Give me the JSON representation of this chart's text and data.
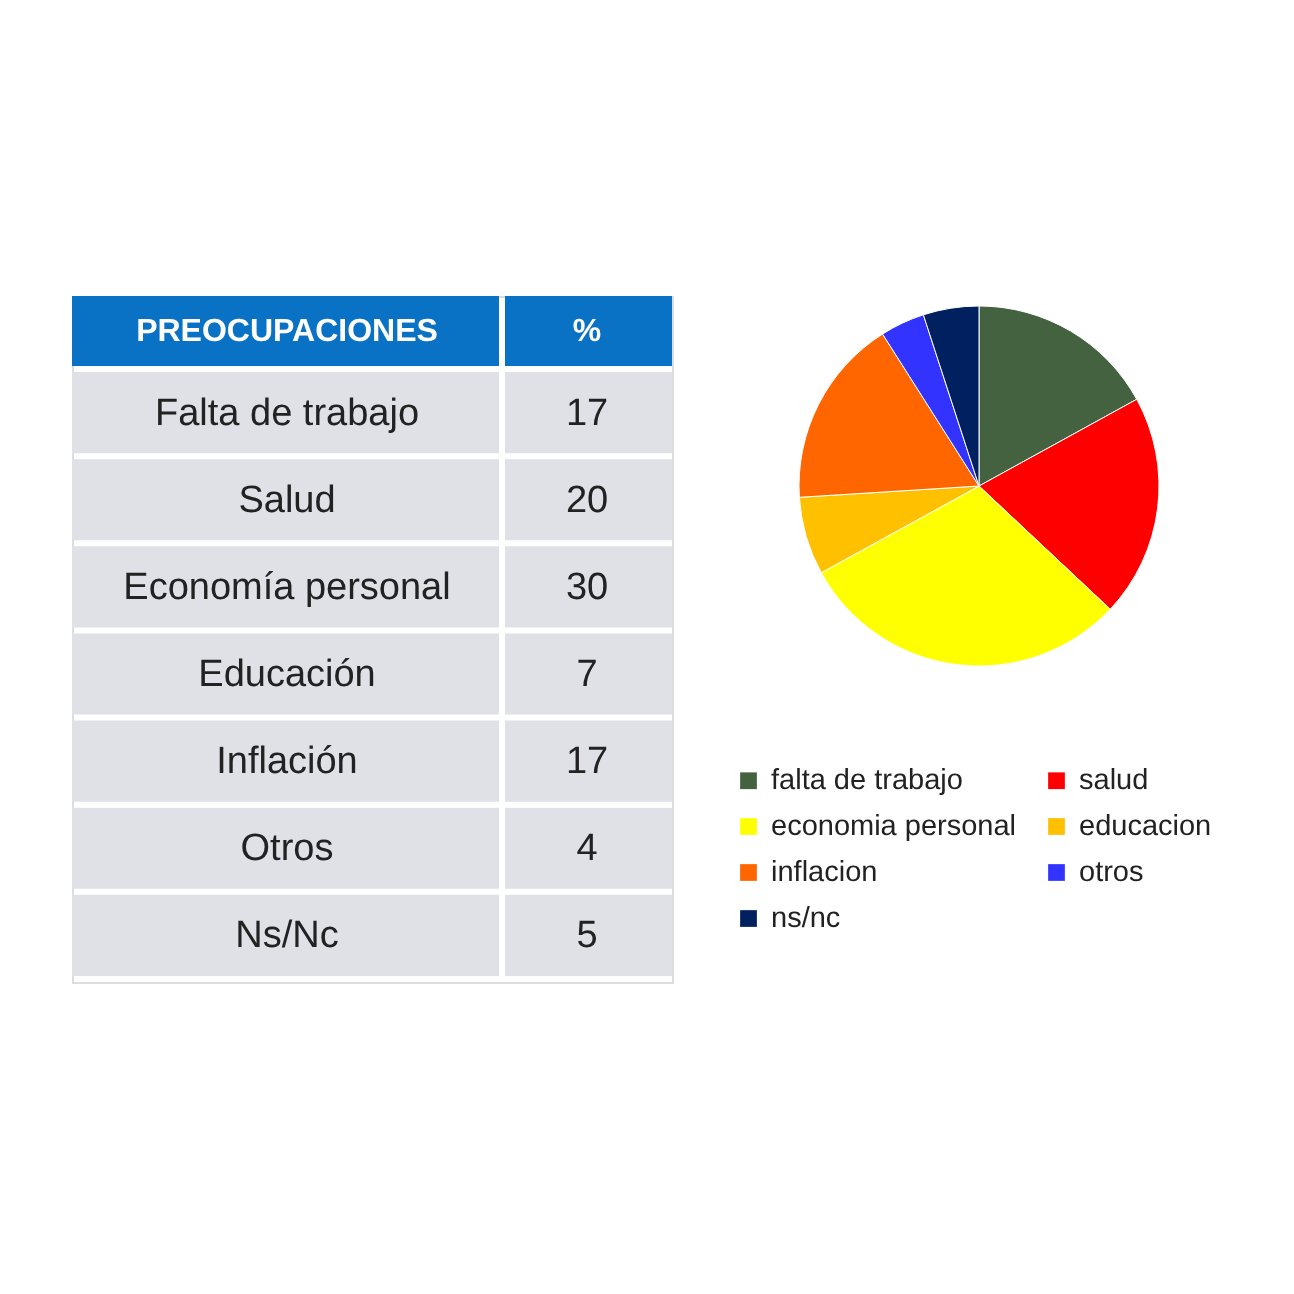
{
  "chart_data": [
    {
      "type": "other",
      "xlabel": "PREOCUPACIONES",
      "ylabel": "%",
      "categories": [
        "Falta de trabajo",
        "Salud",
        "Economía personal",
        "Educación",
        "Inflación",
        "Otros",
        "Ns/Nc"
      ],
      "values": [
        17,
        20,
        30,
        7,
        17,
        4,
        5
      ],
      "data_labels": true
    },
    {
      "type": "pie",
      "categories": [
        "falta de trabajo",
        "salud",
        "economia personal",
        "educacion",
        "inflacion",
        "otros",
        "ns/nc"
      ],
      "values": [
        17,
        20,
        30,
        7,
        17,
        4,
        5
      ],
      "colors": [
        "#44623f",
        "#ff0000",
        "#ffff00",
        "#ffc000",
        "#ff6600",
        "#3333ff",
        "#002060"
      ],
      "legend": "bottom"
    }
  ]
}
